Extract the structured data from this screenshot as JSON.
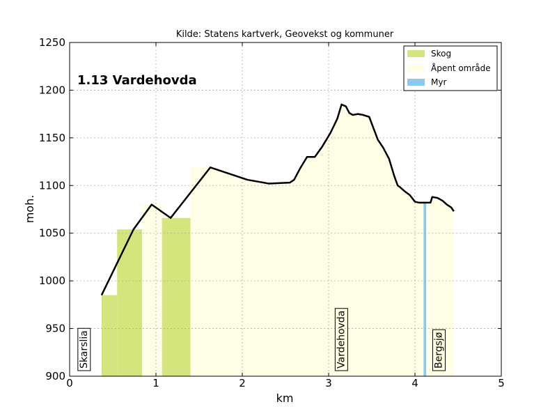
{
  "source_title": "Kilde: Statens kartverk, Geovekst og kommuner",
  "chart_data": {
    "type": "area",
    "title": "1.13 Vardehovda",
    "xlabel": "km",
    "ylabel": "moh.",
    "xlim": [
      0,
      5
    ],
    "ylim": [
      900,
      1250
    ],
    "x_ticks": [
      "0",
      "1",
      "2",
      "3",
      "4",
      "5"
    ],
    "y_ticks": [
      "900",
      "950",
      "1000",
      "1050",
      "1100",
      "1150",
      "1200",
      "1250"
    ],
    "grid": true,
    "legend_position": "top-right",
    "legend": [
      {
        "label": "Skog",
        "color": "#d4e57e"
      },
      {
        "label": "Åpent område",
        "color": "#fefee6"
      },
      {
        "label": "Myr",
        "color": "#87c9ef"
      }
    ],
    "elevation_profile": {
      "x": [
        0.37,
        0.74,
        0.95,
        1.17,
        1.63,
        2.06,
        2.31,
        2.55,
        2.6,
        2.67,
        2.75,
        2.84,
        2.92,
        3.02,
        3.1,
        3.15,
        3.2,
        3.24,
        3.28,
        3.34,
        3.4,
        3.47,
        3.52,
        3.57,
        3.63,
        3.7,
        3.76,
        3.8,
        3.83,
        3.88,
        3.94,
        4.0,
        4.05,
        4.12,
        4.18,
        4.2,
        4.26,
        4.32,
        4.37,
        4.42,
        4.45
      ],
      "y": [
        985,
        1054,
        1080,
        1066,
        1119,
        1106,
        1102,
        1103,
        1106,
        1118,
        1130,
        1130,
        1140,
        1155,
        1170,
        1185,
        1183,
        1176,
        1174,
        1175,
        1174,
        1172,
        1160,
        1148,
        1140,
        1128,
        1110,
        1100,
        1098,
        1094,
        1090,
        1083,
        1082,
        1082,
        1082,
        1088,
        1087,
        1084,
        1080,
        1077,
        1073
      ]
    },
    "land_cover": [
      {
        "type": "Skog",
        "x_start": 0.37,
        "x_end": 0.55,
        "elevation": 985
      },
      {
        "type": "Skog",
        "x_start": 0.55,
        "x_end": 0.84,
        "elevation": 1054
      },
      {
        "type": "Åpent område",
        "x_start": 0.84,
        "x_end": 1.07,
        "elevation": 1080
      },
      {
        "type": "Skog",
        "x_start": 1.07,
        "x_end": 1.4,
        "elevation": 1066
      },
      {
        "type": "Åpent område",
        "x_start": 1.4,
        "x_end": 4.45,
        "elevation": "profile"
      },
      {
        "type": "Myr",
        "x_start": 4.1,
        "x_end": 4.13,
        "elevation": 1082
      }
    ],
    "place_labels": [
      {
        "name": "Skarslia",
        "x": 0.16
      },
      {
        "name": "Vardehovda",
        "x": 3.14
      },
      {
        "name": "Bergsjø",
        "x": 4.27
      }
    ]
  }
}
